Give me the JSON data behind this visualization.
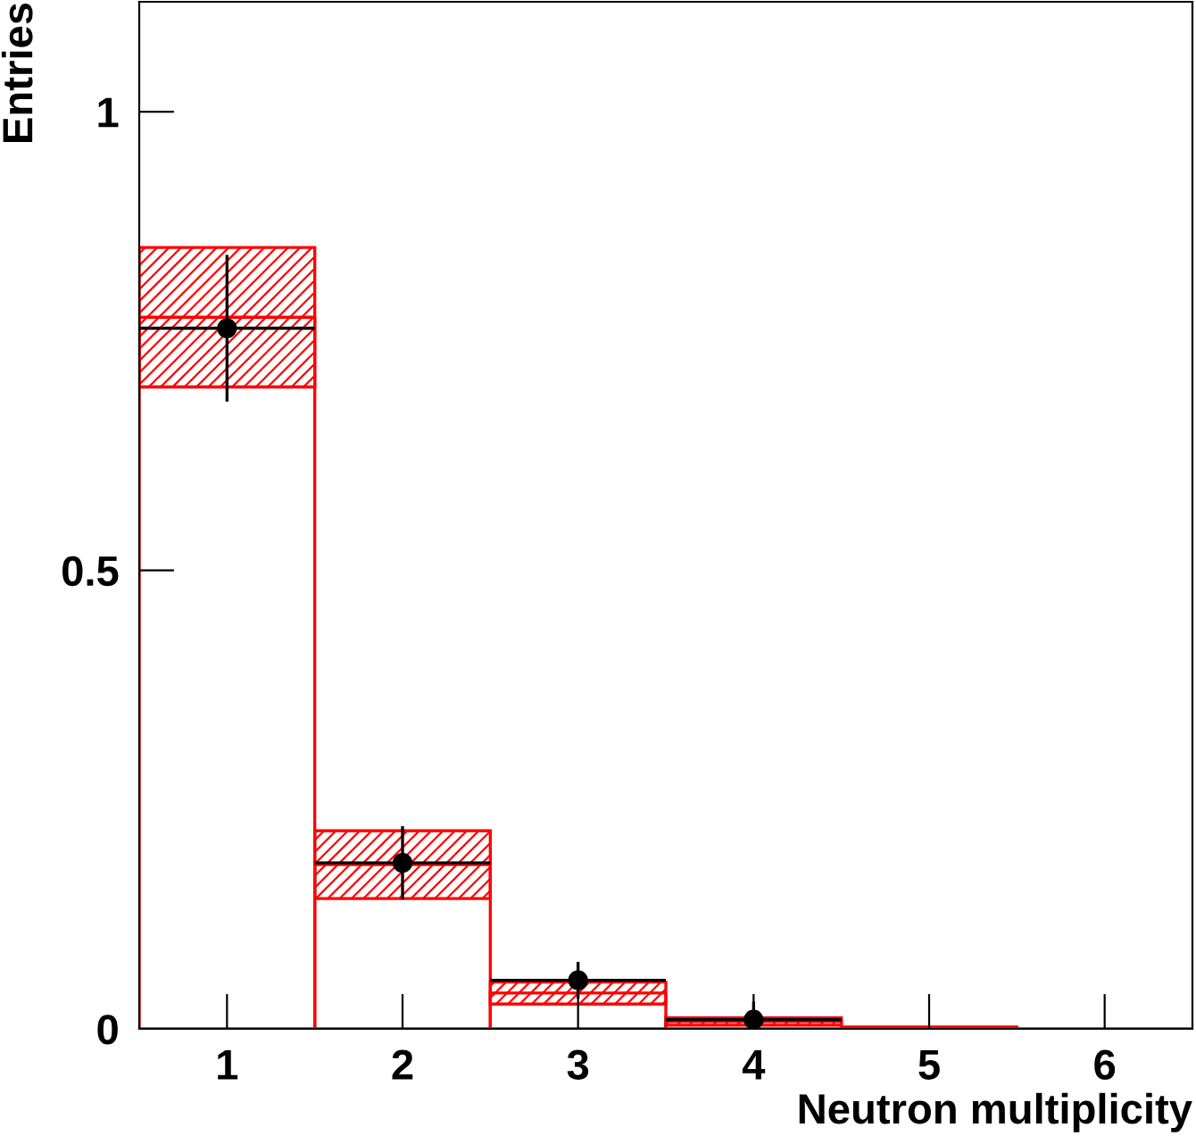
{
  "chart_data": {
    "type": "histogram",
    "xlabel": "Neutron multiplicity",
    "ylabel": "Entries",
    "bins": [
      0.5,
      1.5,
      2.5,
      3.5,
      4.5,
      5.5,
      6.5
    ],
    "series": [
      {
        "type": "bar",
        "color": "#ff0000",
        "x": [
          1,
          2,
          3,
          4
        ],
        "base": [
          0.7,
          0.142,
          0.027,
          0.004
        ],
        "values": [
          0.152,
          0.074,
          0.024,
          0.008
        ]
      },
      {
        "type": "histogram",
        "color": "#ff0000",
        "values": [
          0.776,
          0.179,
          0.039,
          0.008,
          0.002,
          0
        ]
      },
      {
        "type": "scatter",
        "color": "#000000",
        "x": [
          1,
          2,
          3,
          4
        ],
        "values": [
          0.764,
          0.181,
          0.053,
          0.01
        ],
        "errors": [
          0.08,
          0.04,
          0.02,
          0.02
        ],
        "xerrors": [
          0.5,
          0.5,
          0.5,
          0.5
        ]
      }
    ],
    "xlim": [
      0.5,
      6.5
    ],
    "ylim": [
      0,
      1.12
    ],
    "xticks": [
      1,
      2,
      3,
      4,
      5,
      6
    ],
    "yticks": [
      0,
      0.5,
      1
    ],
    "marker": "circle"
  }
}
